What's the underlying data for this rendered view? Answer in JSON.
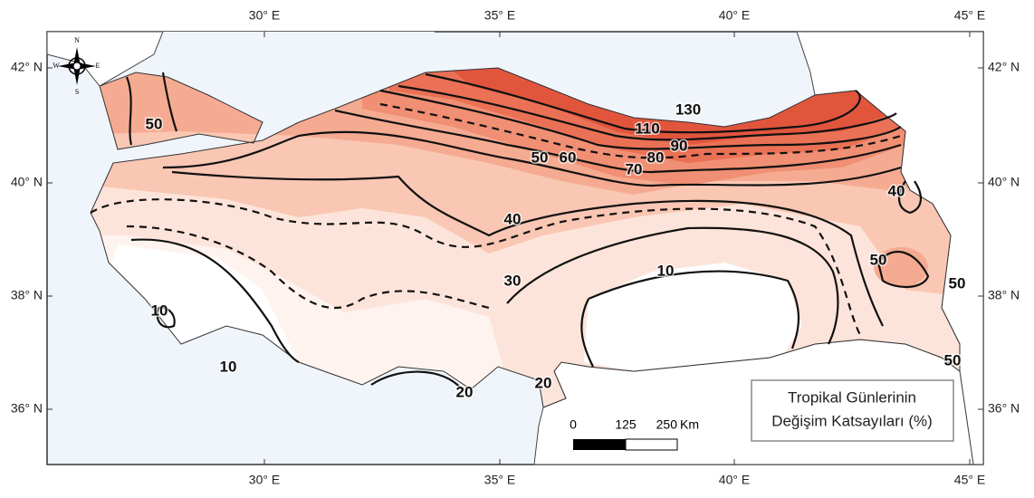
{
  "axes": {
    "lon_labels": [
      "30° E",
      "35° E",
      "40° E",
      "45° E"
    ],
    "lat_labels": [
      "42° N",
      "40° N",
      "38° N",
      "36° N"
    ]
  },
  "contour_labels": [
    50,
    50,
    60,
    70,
    80,
    90,
    110,
    130,
    40,
    40,
    30,
    10,
    10,
    10,
    20,
    20,
    50,
    50,
    50
  ],
  "legend": {
    "title": [
      "Tropikal Günlerinin",
      "Değişim Katsayıları (%)"
    ]
  },
  "scale_bar": {
    "ticks": [
      0,
      125,
      250
    ],
    "unit": "Km"
  },
  "compass": {
    "labels": [
      "N",
      "E",
      "S",
      "W"
    ]
  }
}
